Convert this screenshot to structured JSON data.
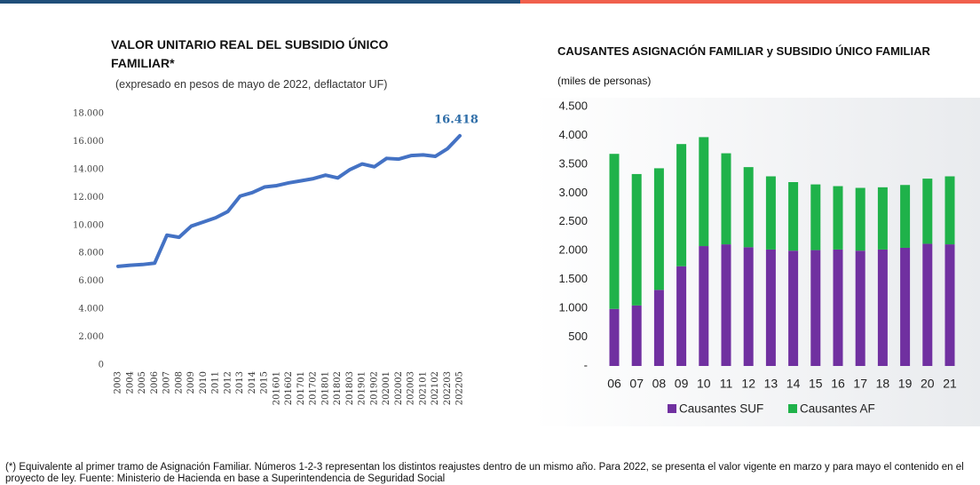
{
  "chart_data": [
    {
      "type": "line",
      "title": "VALOR UNITARIO REAL DEL SUBSIDIO ÚNICO FAMILIAR*",
      "subtitle": "(expresado en pesos de mayo de 2022, deflactator UF)",
      "categories": [
        "2003",
        "2004",
        "2005",
        "2006",
        "2007",
        "2008",
        "2009",
        "2010",
        "2011",
        "2012",
        "2013",
        "2014",
        "2015",
        "201601",
        "201602",
        "201701",
        "201702",
        "201801",
        "201802",
        "201803",
        "201901",
        "201902",
        "202001",
        "202002",
        "202003",
        "202101",
        "202102",
        "202203",
        "202205"
      ],
      "values": [
        7070,
        7150,
        7200,
        7300,
        9300,
        9150,
        9950,
        10250,
        10550,
        11000,
        12100,
        12350,
        12750,
        12850,
        13050,
        13200,
        13350,
        13600,
        13400,
        14000,
        14400,
        14200,
        14800,
        14750,
        15000,
        15050,
        14950,
        15500,
        16418
      ],
      "value_labels": [
        null,
        null,
        null,
        null,
        null,
        null,
        null,
        null,
        null,
        null,
        null,
        null,
        null,
        null,
        null,
        null,
        null,
        null,
        null,
        null,
        null,
        null,
        null,
        null,
        null,
        null,
        null,
        null,
        "16.418"
      ],
      "color": "#4472c4",
      "ylim": [
        0,
        18000
      ],
      "yticks": [
        0,
        {
          "value": 2000,
          "label": "2.000"
        },
        {
          "value": 4000,
          "label": "4.000"
        },
        {
          "value": 6000,
          "label": "6.000"
        },
        {
          "value": 8000,
          "label": "8.000"
        },
        {
          "value": 10000,
          "label": "10.000"
        },
        {
          "value": 12000,
          "label": "12.000"
        },
        {
          "value": 14000,
          "label": "14.000"
        },
        {
          "value": 16000,
          "label": "16.000"
        },
        {
          "value": 18000,
          "label": "18.000"
        }
      ]
    },
    {
      "type": "stacked_bar",
      "title": "CAUSANTES ASIGNACIÓN FAMILIAR y SUBSIDIO ÚNICO FAMILIAR",
      "subtitle": "(miles de personas)",
      "categories": [
        "06",
        "07",
        "08",
        "09",
        "10",
        "11",
        "12",
        "13",
        "14",
        "15",
        "16",
        "17",
        "18",
        "19",
        "20",
        "21"
      ],
      "series": [
        {
          "name": "Causantes SUF",
          "color": "#7030a0",
          "values": [
            990,
            1050,
            1320,
            1730,
            2080,
            2110,
            2060,
            2020,
            2000,
            2010,
            2020,
            2000,
            2020,
            2050,
            2120,
            2110
          ]
        },
        {
          "name": "Causantes AF",
          "color": "#1fb24a",
          "values": [
            2690,
            2280,
            2110,
            2120,
            1890,
            1580,
            1390,
            1270,
            1190,
            1140,
            1100,
            1090,
            1080,
            1090,
            1130,
            1180
          ]
        }
      ],
      "ylim": [
        0,
        4500
      ],
      "yticks": [
        {
          "value": 0,
          "label": "-"
        },
        500,
        {
          "value": 1000,
          "label": "1.000"
        },
        {
          "value": 1500,
          "label": "1.500"
        },
        {
          "value": 2000,
          "label": "2.000"
        },
        {
          "value": 2500,
          "label": "2.500"
        },
        {
          "value": 3000,
          "label": "3.000"
        },
        {
          "value": 3500,
          "label": "3.500"
        },
        {
          "value": 4000,
          "label": "4.000"
        },
        {
          "value": 4500,
          "label": "4.500"
        }
      ],
      "legend": "bottom"
    }
  ],
  "footnote": "(*) Equivalente al primer tramo de Asignación Familiar. Números 1-2-3 representan los distintos reajustes dentro de un mismo año. Para 2022, se presenta el valor vigente en marzo y para mayo el contenido en el proyecto de ley. Fuente: Ministerio de Hacienda en base a Superintendencia de Seguridad Social"
}
